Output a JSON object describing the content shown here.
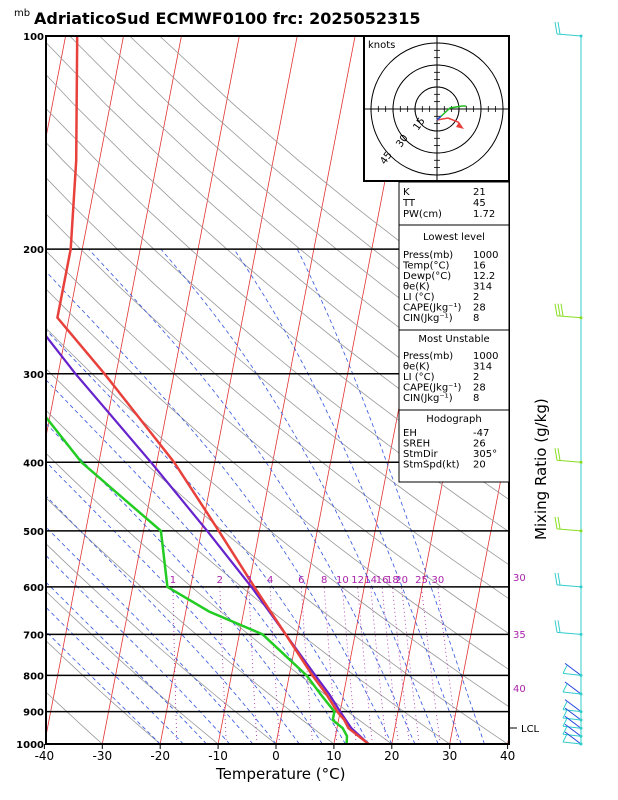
{
  "title": "AdriaticoSud ECMWF0100 frc: 2025052315",
  "chart_data": {
    "type": "skew-t log-p sounding",
    "title": "AdriaticoSud ECMWF0100 frc: 2025052315",
    "pressure_unit": "mb",
    "xlabel": "Temperature (°C)",
    "right_axis_label": "Mixing Ratio (g/kg)",
    "pressure_levels": [
      100,
      200,
      300,
      400,
      500,
      600,
      700,
      800,
      900,
      1000
    ],
    "temperature_ticks": [
      -40,
      -30,
      -20,
      -10,
      0,
      10,
      20,
      30,
      40
    ],
    "mixing_ratio_labels": [
      "1",
      "2",
      "3",
      "4",
      "6",
      "8",
      "10",
      "12",
      "14",
      "16",
      "18",
      "20",
      "25",
      "30"
    ],
    "thetae_labels": [
      "30",
      "35",
      "40"
    ],
    "lcl_label": "LCL",
    "temperature_profile": [
      {
        "p": 1000,
        "t": 16
      },
      {
        "p": 975,
        "t": 14
      },
      {
        "p": 950,
        "t": 12
      },
      {
        "p": 925,
        "t": 11
      },
      {
        "p": 900,
        "t": 9.5
      },
      {
        "p": 850,
        "t": 7
      },
      {
        "p": 800,
        "t": 4
      },
      {
        "p": 700,
        "t": -2
      },
      {
        "p": 600,
        "t": -9
      },
      {
        "p": 500,
        "t": -17
      },
      {
        "p": 400,
        "t": -27
      },
      {
        "p": 300,
        "t": -42
      },
      {
        "p": 250,
        "t": -52
      },
      {
        "p": 200,
        "t": -52
      },
      {
        "p": 150,
        "t": -54
      },
      {
        "p": 100,
        "t": -58
      }
    ],
    "dewpoint_profile": [
      {
        "p": 1000,
        "t": 12.2
      },
      {
        "p": 975,
        "t": 12
      },
      {
        "p": 950,
        "t": 11
      },
      {
        "p": 925,
        "t": 9
      },
      {
        "p": 900,
        "t": 9
      },
      {
        "p": 850,
        "t": 6
      },
      {
        "p": 800,
        "t": 3
      },
      {
        "p": 700,
        "t": -6
      },
      {
        "p": 650,
        "t": -16
      },
      {
        "p": 600,
        "t": -24
      },
      {
        "p": 500,
        "t": -27
      },
      {
        "p": 400,
        "t": -43
      },
      {
        "p": 300,
        "t": -58
      },
      {
        "p": 200,
        "t": -74
      },
      {
        "p": 100,
        "t": -90
      }
    ],
    "parcel_profile": [
      {
        "p": 1000,
        "t": 16
      },
      {
        "p": 950,
        "t": 12.5
      },
      {
        "p": 900,
        "t": 10
      },
      {
        "p": 850,
        "t": 7.5
      },
      {
        "p": 800,
        "t": 4.5
      },
      {
        "p": 700,
        "t": -2
      },
      {
        "p": 600,
        "t": -9.5
      },
      {
        "p": 500,
        "t": -19
      },
      {
        "p": 400,
        "t": -31
      },
      {
        "p": 300,
        "t": -47
      },
      {
        "p": 200,
        "t": -68
      },
      {
        "p": 100,
        "t": -98
      }
    ],
    "hodograph": {
      "unit": "knots",
      "rings_kt": [
        15,
        30,
        45
      ]
    },
    "indices": {
      "general": [
        {
          "label": "K",
          "value": "21"
        },
        {
          "label": "TT",
          "value": "45"
        },
        {
          "label": "PW(cm)",
          "value": "1.72"
        }
      ],
      "lowest_level": {
        "title": "Lowest level",
        "rows": [
          {
            "label": "Press(mb)",
            "value": "1000"
          },
          {
            "label": "Temp(°C)",
            "value": "16"
          },
          {
            "label": "Dewp(°C)",
            "value": "12.2"
          },
          {
            "label": "θe(K)",
            "value": "314"
          },
          {
            "label": "LI (°C)",
            "value": "2"
          },
          {
            "label": "CAPE(Jkg⁻¹)",
            "value": "28"
          },
          {
            "label": "CIN(Jkg⁻¹)",
            "value": "8"
          }
        ]
      },
      "most_unstable": {
        "title": "Most Unstable",
        "rows": [
          {
            "label": "Press(mb)",
            "value": "1000"
          },
          {
            "label": "θe(K)",
            "value": "314"
          },
          {
            "label": "LI (°C)",
            "value": "2"
          },
          {
            "label": "CAPE(Jkg⁻¹)",
            "value": "28"
          },
          {
            "label": "CIN(Jkg⁻¹)",
            "value": "8"
          }
        ]
      },
      "hodograph_params": {
        "title": "Hodograph",
        "rows": [
          {
            "label": "EH",
            "value": "-47"
          },
          {
            "label": "SREH",
            "value": "26"
          },
          {
            "label": "StmDir",
            "value": "305°"
          },
          {
            "label": "StmSpd(kt)",
            "value": "20"
          }
        ]
      }
    },
    "colors": {
      "temperature": "#e8413c",
      "dewpoint": "#22cc22",
      "parcel": "#6622cc",
      "isotherm": "#e33333",
      "dry_adiabat": "#999999",
      "moist_adiabat": "#3355dd",
      "mixing_ratio": "#aa22aa",
      "wind_barb": "#33cccc",
      "wind_barb_alt": "#88dd22"
    }
  }
}
